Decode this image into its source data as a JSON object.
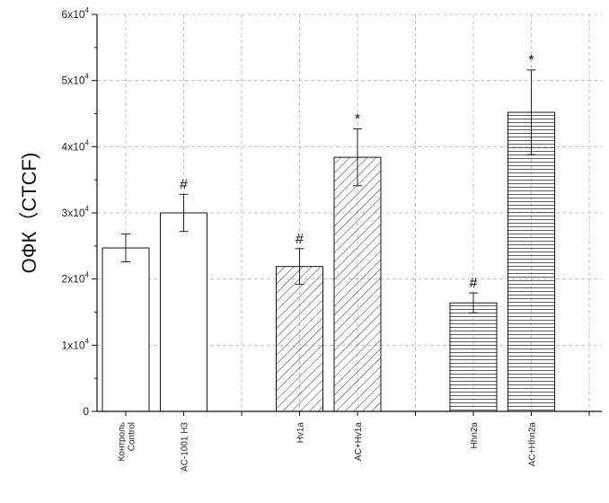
{
  "chart_data": {
    "type": "bar",
    "title": "",
    "xlabel": "",
    "ylabel": "ОФК（CTCF)",
    "ylim": [
      0,
      60000
    ],
    "yticks": [
      {
        "value": 0,
        "label": "0"
      },
      {
        "value": 10000,
        "label": "1x10",
        "exp": "4"
      },
      {
        "value": 20000,
        "label": "2x10",
        "exp": "4"
      },
      {
        "value": 30000,
        "label": "3x10",
        "exp": "4"
      },
      {
        "value": 40000,
        "label": "4x10",
        "exp": "4"
      },
      {
        "value": 50000,
        "label": "5x10",
        "exp": "4"
      },
      {
        "value": 60000,
        "label": "6x10",
        "exp": "4"
      }
    ],
    "grid": true,
    "bars": [
      {
        "category": [
          "Контроль",
          "Control"
        ],
        "value": 24700,
        "error": 2100,
        "pattern": "open",
        "marker": "",
        "slot": 0
      },
      {
        "category": [
          "AC-1001 H3"
        ],
        "value": 30000,
        "error": 2800,
        "pattern": "open",
        "marker": "#",
        "slot": 1
      },
      {
        "category": [
          "Hv1a"
        ],
        "value": 21900,
        "error": 2700,
        "pattern": "hatch",
        "marker": "#",
        "slot": 3
      },
      {
        "category": [
          "AC+Hv1a"
        ],
        "value": 38400,
        "error": 4300,
        "pattern": "hatch",
        "marker": "*",
        "slot": 4
      },
      {
        "category": [
          "Hhn2a"
        ],
        "value": 16400,
        "error": 1500,
        "pattern": "horizontal",
        "marker": "#",
        "slot": 6
      },
      {
        "category": [
          "AC+Hhn2a"
        ],
        "value": 45200,
        "error": 6400,
        "pattern": "horizontal",
        "marker": "*",
        "slot": 7
      }
    ]
  }
}
